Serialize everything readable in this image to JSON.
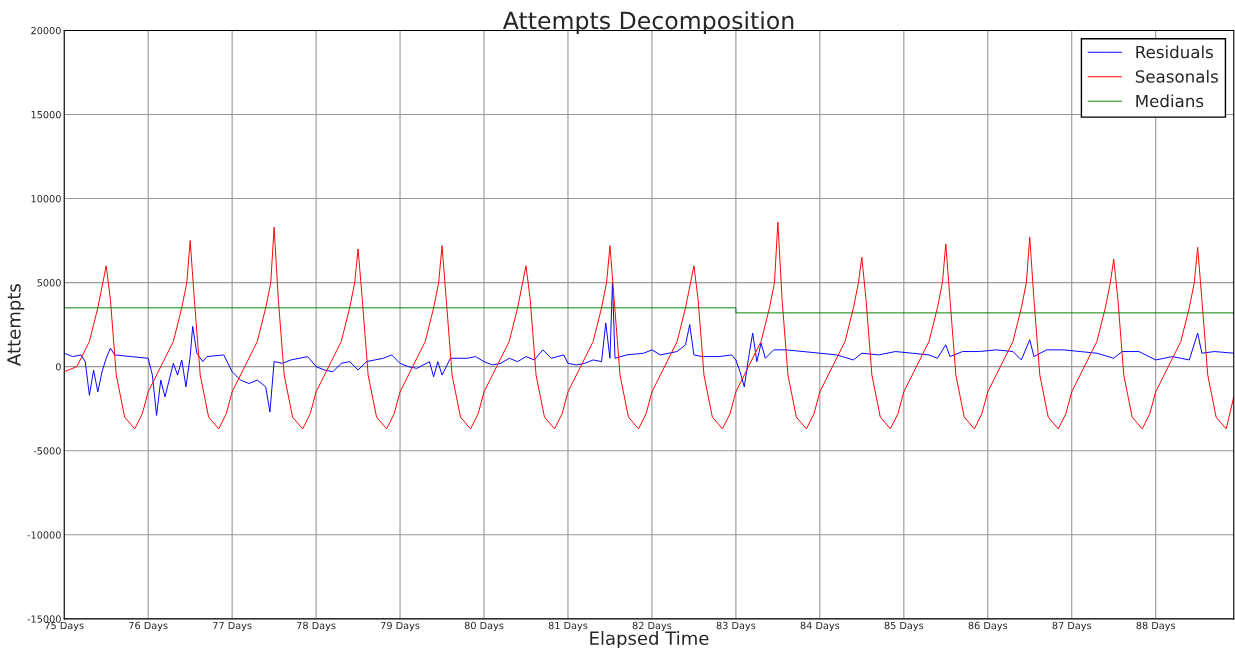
{
  "chart_data": {
    "type": "line",
    "title": "Attempts Decomposition",
    "xlabel": "Elapsed Time",
    "ylabel": "Attempts",
    "xlim": [
      75,
      88.93
    ],
    "ylim": [
      -15000,
      20000
    ],
    "xticks": [
      {
        "value": 75,
        "label": "75 Days"
      },
      {
        "value": 76,
        "label": "76 Days"
      },
      {
        "value": 77,
        "label": "77 Days"
      },
      {
        "value": 78,
        "label": "78 Days"
      },
      {
        "value": 79,
        "label": "79 Days"
      },
      {
        "value": 80,
        "label": "80 Days"
      },
      {
        "value": 81,
        "label": "81 Days"
      },
      {
        "value": 82,
        "label": "82 Days"
      },
      {
        "value": 83,
        "label": "83 Days"
      },
      {
        "value": 84,
        "label": "84 Days"
      },
      {
        "value": 85,
        "label": "85 Days"
      },
      {
        "value": 86,
        "label": "86 Days"
      },
      {
        "value": 87,
        "label": "87 Days"
      },
      {
        "value": 88,
        "label": "88 Days"
      }
    ],
    "yticks": [
      -15000,
      -10000,
      -5000,
      0,
      5000,
      10000,
      15000,
      20000
    ],
    "grid": true,
    "legend": "top right",
    "marker": "none",
    "line_style": "solid",
    "series": [
      {
        "name": "Residuals",
        "color": "#0000ff",
        "x": [
          75.0,
          75.1,
          75.2,
          75.25,
          75.3,
          75.35,
          75.4,
          75.45,
          75.5,
          75.55,
          75.6,
          75.8,
          76.0,
          76.05,
          76.1,
          76.15,
          76.2,
          76.3,
          76.35,
          76.4,
          76.45,
          76.5,
          76.53,
          76.58,
          76.65,
          76.7,
          76.9,
          77.0,
          77.1,
          77.2,
          77.3,
          77.4,
          77.45,
          77.5,
          77.6,
          77.7,
          77.9,
          78.0,
          78.1,
          78.2,
          78.3,
          78.4,
          78.5,
          78.6,
          78.8,
          78.9,
          79.0,
          79.1,
          79.2,
          79.35,
          79.4,
          79.45,
          79.5,
          79.6,
          79.8,
          79.9,
          80.0,
          80.1,
          80.2,
          80.3,
          80.4,
          80.5,
          80.6,
          80.7,
          80.8,
          80.95,
          81.0,
          81.1,
          81.2,
          81.3,
          81.4,
          81.45,
          81.5,
          81.53,
          81.56,
          81.7,
          81.9,
          82.0,
          82.1,
          82.2,
          82.3,
          82.4,
          82.45,
          82.5,
          82.6,
          82.8,
          82.95,
          83.0,
          83.05,
          83.1,
          83.15,
          83.2,
          83.25,
          83.3,
          83.35,
          83.45,
          83.6,
          83.8,
          84.0,
          84.2,
          84.4,
          84.5,
          84.7,
          84.9,
          85.1,
          85.3,
          85.4,
          85.5,
          85.55,
          85.7,
          85.9,
          86.1,
          86.3,
          86.4,
          86.5,
          86.55,
          86.7,
          86.9,
          87.1,
          87.3,
          87.5,
          87.6,
          87.8,
          88.0,
          88.2,
          88.4,
          88.5,
          88.55,
          88.7,
          88.93
        ],
        "values": [
          800,
          600,
          700,
          300,
          -1700,
          -200,
          -1500,
          -300,
          500,
          1100,
          700,
          600,
          500,
          -500,
          -2900,
          -800,
          -1800,
          200,
          -500,
          400,
          -1200,
          600,
          2400,
          800,
          300,
          600,
          700,
          -300,
          -800,
          -1000,
          -800,
          -1200,
          -2700,
          300,
          200,
          400,
          600,
          0,
          -200,
          -300,
          200,
          300,
          -200,
          300,
          500,
          700,
          200,
          0,
          -100,
          300,
          -600,
          300,
          -500,
          500,
          500,
          600,
          300,
          100,
          200,
          500,
          300,
          600,
          400,
          1000,
          500,
          700,
          200,
          100,
          200,
          400,
          300,
          2600,
          500,
          5000,
          500,
          700,
          800,
          1000,
          700,
          800,
          900,
          1300,
          2500,
          700,
          600,
          600,
          700,
          400,
          -300,
          -1200,
          500,
          2000,
          300,
          1400,
          500,
          1000,
          1000,
          900,
          800,
          700,
          400,
          800,
          700,
          900,
          800,
          700,
          500,
          1300,
          600,
          900,
          900,
          1000,
          900,
          400,
          1600,
          600,
          1000,
          1000,
          900,
          800,
          500,
          900,
          900,
          400,
          600,
          400,
          2000,
          800,
          900,
          800
        ]
      },
      {
        "name": "Seasonals",
        "color": "#ff0000",
        "x": [
          75.0,
          75.15,
          75.3,
          75.4,
          75.46,
          75.5,
          75.55,
          75.62,
          75.72,
          75.84,
          75.93,
          76.0,
          76.15,
          76.3,
          76.4,
          76.46,
          76.5,
          76.55,
          76.62,
          76.72,
          76.84,
          76.93,
          77.0,
          77.15,
          77.3,
          77.4,
          77.46,
          77.5,
          77.55,
          77.62,
          77.72,
          77.84,
          77.93,
          78.0,
          78.15,
          78.3,
          78.4,
          78.46,
          78.5,
          78.55,
          78.62,
          78.72,
          78.84,
          78.93,
          79.0,
          79.15,
          79.3,
          79.4,
          79.46,
          79.5,
          79.55,
          79.62,
          79.72,
          79.84,
          79.93,
          80.0,
          80.15,
          80.3,
          80.4,
          80.46,
          80.5,
          80.55,
          80.62,
          80.72,
          80.84,
          80.93,
          81.0,
          81.15,
          81.3,
          81.4,
          81.46,
          81.5,
          81.55,
          81.62,
          81.72,
          81.84,
          81.93,
          82.0,
          82.15,
          82.3,
          82.4,
          82.46,
          82.5,
          82.55,
          82.62,
          82.72,
          82.84,
          82.93,
          83.0,
          83.15,
          83.3,
          83.4,
          83.46,
          83.5,
          83.55,
          83.62,
          83.72,
          83.84,
          83.93,
          84.0,
          84.15,
          84.3,
          84.4,
          84.46,
          84.5,
          84.55,
          84.62,
          84.72,
          84.84,
          84.93,
          85.0,
          85.15,
          85.3,
          85.4,
          85.46,
          85.5,
          85.55,
          85.62,
          85.72,
          85.84,
          85.93,
          86.0,
          86.15,
          86.3,
          86.4,
          86.46,
          86.5,
          86.55,
          86.62,
          86.72,
          86.84,
          86.93,
          87.0,
          87.15,
          87.3,
          87.4,
          87.46,
          87.5,
          87.55,
          87.62,
          87.72,
          87.84,
          87.93,
          88.0,
          88.15,
          88.3,
          88.4,
          88.46,
          88.5,
          88.55,
          88.62,
          88.72,
          88.84,
          88.93
        ],
        "values": [
          -300,
          0,
          1500,
          3500,
          5000,
          6000,
          4000,
          -500,
          -3000,
          -3700,
          -2800,
          -1500,
          0,
          1500,
          3500,
          5000,
          7500,
          4000,
          -500,
          -3000,
          -3700,
          -2800,
          -1500,
          0,
          1500,
          3500,
          5000,
          8300,
          4000,
          -500,
          -3000,
          -3700,
          -2800,
          -1500,
          0,
          1500,
          3500,
          5000,
          7000,
          4000,
          -500,
          -3000,
          -3700,
          -2800,
          -1500,
          0,
          1500,
          3500,
          5000,
          7200,
          4000,
          -500,
          -3000,
          -3700,
          -2800,
          -1500,
          0,
          1500,
          3500,
          5000,
          6000,
          4000,
          -500,
          -3000,
          -3700,
          -2800,
          -1500,
          0,
          1500,
          3500,
          5000,
          7200,
          4000,
          -500,
          -3000,
          -3700,
          -2800,
          -1500,
          0,
          1500,
          3500,
          5000,
          6000,
          4000,
          -500,
          -3000,
          -3700,
          -2800,
          -1500,
          0,
          1500,
          3500,
          5000,
          8600,
          4000,
          -500,
          -3000,
          -3700,
          -2800,
          -1500,
          0,
          1500,
          3500,
          5000,
          6500,
          4000,
          -500,
          -3000,
          -3700,
          -2800,
          -1500,
          0,
          1500,
          3500,
          5000,
          7300,
          4000,
          -500,
          -3000,
          -3700,
          -2800,
          -1500,
          0,
          1500,
          3500,
          5000,
          7700,
          4000,
          -500,
          -3000,
          -3700,
          -2800,
          -1500,
          0,
          1500,
          3500,
          5000,
          6400,
          4000,
          -500,
          -3000,
          -3700,
          -2800,
          -1500,
          0,
          1500,
          3500,
          5000,
          7100,
          4000,
          -500,
          -3000,
          -3700,
          -1800
        ]
      },
      {
        "name": "Medians",
        "color": "#008000",
        "x": [
          75.0,
          83.0,
          83.0,
          88.93
        ],
        "values": [
          3500,
          3500,
          3200,
          3200
        ]
      }
    ]
  }
}
